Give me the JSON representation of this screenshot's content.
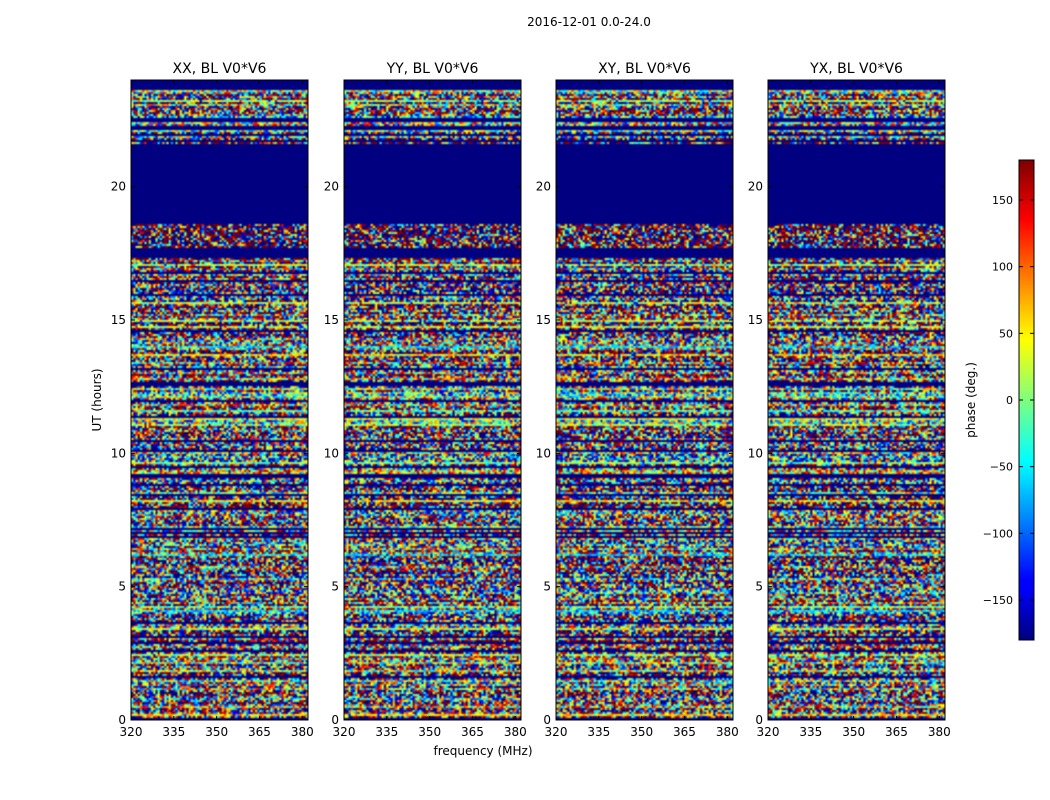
{
  "figure_title": "2016-12-01 0.0-24.0",
  "chart_data": {
    "type": "heatmap",
    "colormap": "jet",
    "xlabel": "frequency (MHz)",
    "ylabel": "UT (hours)",
    "xlim": [
      320,
      382
    ],
    "ylim": [
      0,
      24
    ],
    "xticks": [
      320,
      335,
      350,
      365,
      380
    ],
    "yticks": [
      0,
      5,
      10,
      15,
      20
    ],
    "panels": [
      {
        "title": "XX, BL V0*V6",
        "polarization": "XX",
        "baseline": "V0*V6"
      },
      {
        "title": "YY, BL V0*V6",
        "polarization": "YY",
        "baseline": "V0*V6"
      },
      {
        "title": "XY, BL V0*V6",
        "polarization": "XY",
        "baseline": "V0*V6"
      },
      {
        "title": "YX, BL V0*V6",
        "polarization": "YX",
        "baseline": "V0*V6"
      }
    ],
    "flagged_ut_ranges": [
      [
        18.6,
        21.6
      ],
      [
        17.3,
        17.7
      ],
      [
        23.6,
        24.0
      ],
      [
        0.0,
        0.1
      ]
    ],
    "colorbar": {
      "label": "phase (deg.)",
      "range": [
        -180,
        180
      ],
      "ticks": [
        -150,
        -100,
        -50,
        0,
        50,
        100,
        150
      ],
      "tick_labels": [
        "−150",
        "−100",
        "−50",
        "0",
        "50",
        "100",
        "150"
      ]
    }
  }
}
